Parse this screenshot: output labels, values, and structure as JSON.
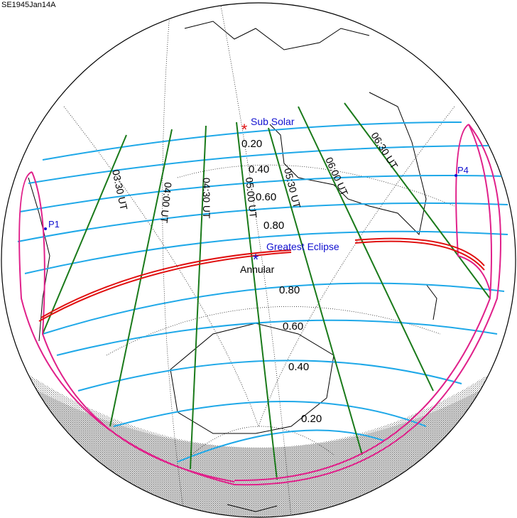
{
  "title": "SE1945Jan14A",
  "labels": {
    "sub_solar": "Sub Solar",
    "greatest_eclipse": "Greatest Eclipse",
    "annular": "Annular",
    "p1": "P1",
    "p4": "P4"
  },
  "north_magnitudes": [
    "0.20",
    "0.40",
    "0.60",
    "0.80"
  ],
  "south_magnitudes": [
    "0.80",
    "0.60",
    "0.40",
    "0.20"
  ],
  "times": [
    "03:30 UT",
    "04:00 UT",
    "04:30 UT",
    "05:00 UT",
    "05:30 UT",
    "06:00 UT",
    "06:30 UT"
  ],
  "colors": {
    "magnitude_lines": "#1ea8e8",
    "time_lines": "#1a7a1a",
    "central_path": "#e01010",
    "penumbral_limits": "#e0208a",
    "labels_blue": "#1010d0"
  }
}
